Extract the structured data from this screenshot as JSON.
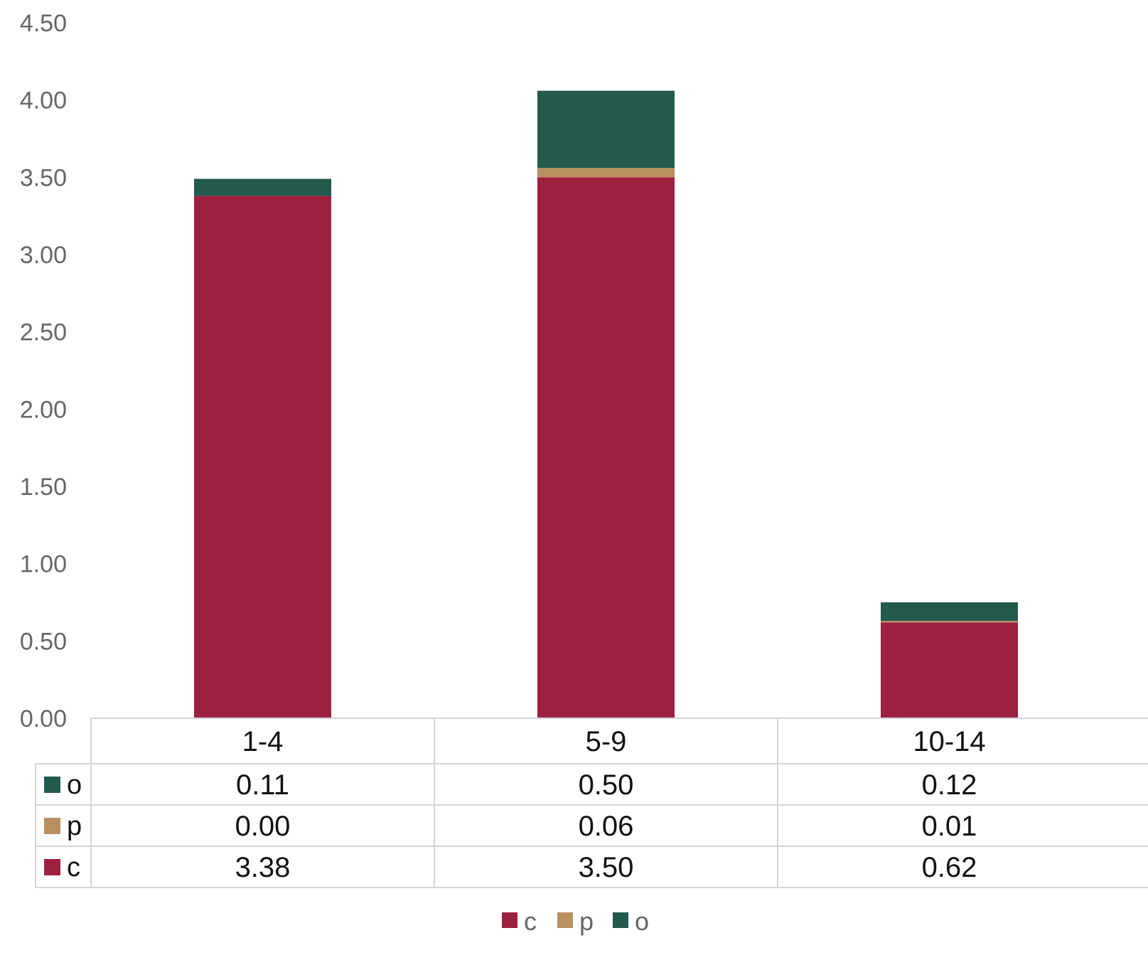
{
  "chart_data": {
    "type": "bar",
    "stacked": true,
    "categories": [
      "1-4",
      "5-9",
      "10-14"
    ],
    "series": [
      {
        "name": "c",
        "color": "#9E2040",
        "values": [
          3.38,
          3.5,
          0.62
        ]
      },
      {
        "name": "p",
        "color": "#B89060",
        "values": [
          0.0,
          0.06,
          0.01
        ]
      },
      {
        "name": "o",
        "color": "#235A4E",
        "values": [
          0.11,
          0.5,
          0.12
        ]
      }
    ],
    "ylim": [
      0,
      4.5
    ],
    "yticks": [
      "0.00",
      "0.50",
      "1.00",
      "1.50",
      "2.00",
      "2.50",
      "3.00",
      "3.50",
      "4.00",
      "4.50"
    ],
    "data_table": {
      "row_order": [
        "o",
        "p",
        "c"
      ],
      "rows": [
        {
          "series": "o",
          "cells": [
            "0.11",
            "0.50",
            "0.12"
          ]
        },
        {
          "series": "p",
          "cells": [
            "0.00",
            "0.06",
            "0.01"
          ]
        },
        {
          "series": "c",
          "cells": [
            "3.38",
            "3.50",
            "0.62"
          ]
        }
      ]
    },
    "legend": {
      "position": "bottom",
      "entries": [
        "c",
        "p",
        "o"
      ]
    },
    "grid": false
  }
}
